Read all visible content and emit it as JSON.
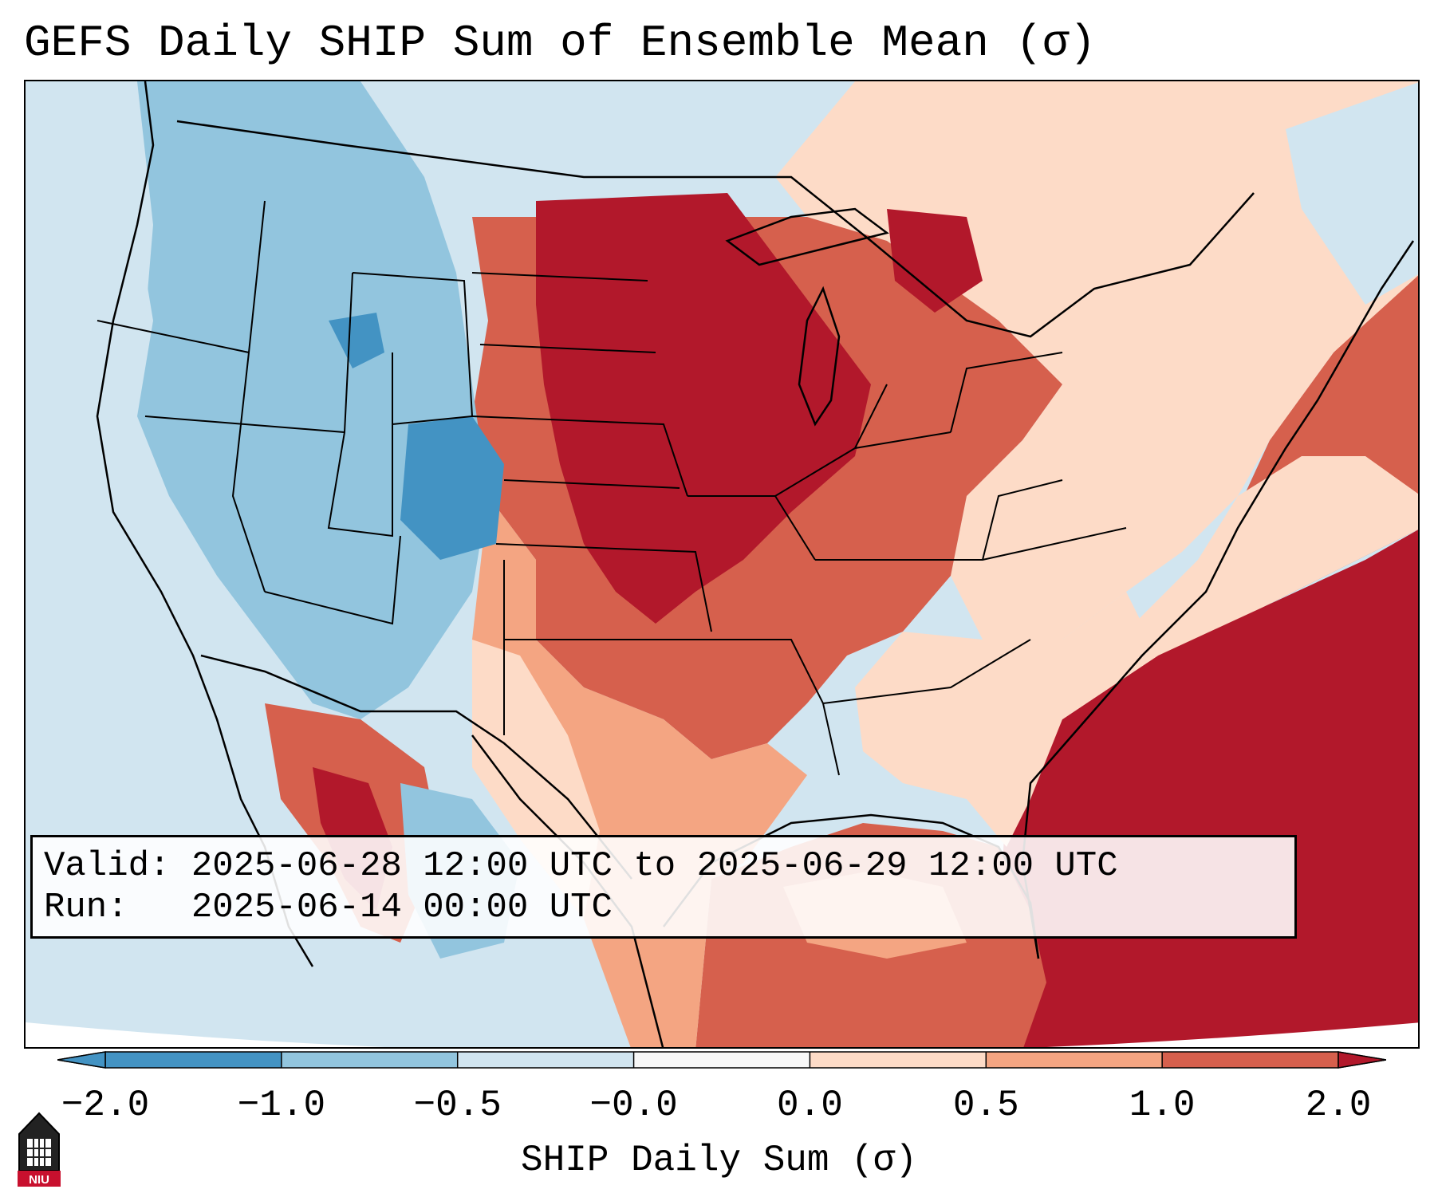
{
  "title": "GEFS Daily SHIP Sum of Ensemble Mean (σ)",
  "info": {
    "valid_line": "Valid: 2025-06-28 12:00 UTC to 2025-06-29 12:00 UTC",
    "run_line": "Run:   2025-06-14 00:00 UTC"
  },
  "colorbar": {
    "label": "SHIP Daily Sum (σ)",
    "ticks": [
      "−2.0",
      "−1.0",
      "−0.5",
      "−0.0",
      "0.0",
      "0.5",
      "1.0",
      "2.0"
    ],
    "colors": [
      "#4393c3",
      "#92c5de",
      "#d1e5f0",
      "#f7f7f7",
      "#fddbc7",
      "#f4a582",
      "#d6604d",
      "#b2182b"
    ]
  },
  "map": {
    "regions": [
      {
        "name": "pacific-northwest",
        "level": "-1.0"
      },
      {
        "name": "great-basin",
        "level": "-1.0"
      },
      {
        "name": "colorado-core",
        "level": "-2.0"
      },
      {
        "name": "southwest-west-texas",
        "level": "-0.5"
      },
      {
        "name": "northern-plains",
        "level": "2.0"
      },
      {
        "name": "central-plains-midwest",
        "level": "1.0"
      },
      {
        "name": "southeast",
        "level": "0.5"
      },
      {
        "name": "northeast",
        "level": "0.0"
      },
      {
        "name": "gulf-of-mexico",
        "level": "1.0"
      },
      {
        "name": "western-atlantic",
        "level": "2.0"
      }
    ]
  },
  "logo": {
    "text": "NIU"
  }
}
